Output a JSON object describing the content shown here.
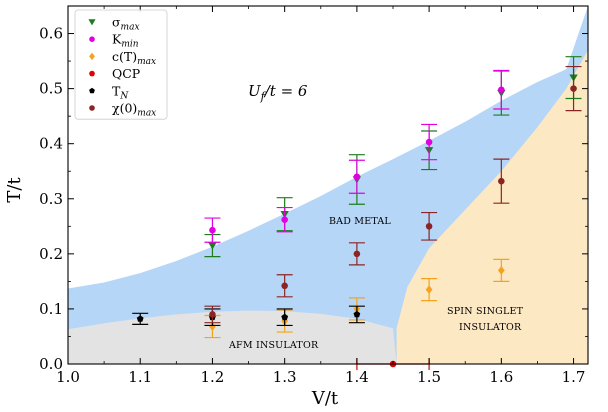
{
  "chart_data": {
    "type": "scatter",
    "xlabel": "V/t",
    "ylabel": "T/t",
    "xlim": [
      1.0,
      1.72
    ],
    "ylim": [
      0.0,
      0.65
    ],
    "x_ticks": [
      "1.0",
      "1.1",
      "1.2",
      "1.3",
      "1.4",
      "1.5",
      "1.6",
      "1.7"
    ],
    "y_ticks": [
      "0.0",
      "0.1",
      "0.2",
      "0.3",
      "0.4",
      "0.5",
      "0.6"
    ],
    "grid": false,
    "legend_position": "top-left",
    "annotation": {
      "base": "U",
      "sub": "f",
      "rest": "/t = 6"
    },
    "region_labels": {
      "bad_metal": "BAD METAL",
      "afm_insulator": "AFM INSULATOR",
      "spin_singlet_line1": "SPIN SINGLET",
      "spin_singlet_line2": "INSULATOR"
    },
    "region_colors": {
      "bad_metal": "#b5d6f7",
      "afm_insulator": "#e3e3e3",
      "spin_singlet_insulator": "#fde8c4"
    },
    "series": [
      {
        "key": "sigma",
        "name_base": "σ",
        "name_sub": "max",
        "marker": "triangle-down",
        "color": "#1c7d1c",
        "x": [
          1.2,
          1.3,
          1.4,
          1.5,
          1.6,
          1.7
        ],
        "y": [
          0.215,
          0.272,
          0.335,
          0.388,
          0.492,
          0.52
        ],
        "yerr": [
          0.02,
          0.03,
          0.045,
          0.035,
          0.04,
          0.038
        ]
      },
      {
        "key": "kmin",
        "name_base": "K",
        "name_sub": "min",
        "marker": "circle",
        "color": "#e100e1",
        "x": [
          1.2,
          1.3,
          1.4,
          1.5,
          1.6
        ],
        "y": [
          0.243,
          0.262,
          0.34,
          0.403,
          0.498
        ],
        "yerr": [
          0.022,
          0.022,
          0.03,
          0.032,
          0.035
        ]
      },
      {
        "key": "c",
        "name_base": "c(T)",
        "name_sub": "max",
        "marker": "diamond",
        "color": "#f5a31c",
        "x": [
          1.2,
          1.3,
          1.4,
          1.5,
          1.6
        ],
        "y": [
          0.068,
          0.078,
          0.1,
          0.135,
          0.17
        ],
        "yerr": [
          0.02,
          0.02,
          0.02,
          0.02,
          0.02
        ]
      },
      {
        "key": "qcp",
        "name_base": "QCP",
        "name_sub": "",
        "marker": "circle",
        "color": "#e00000",
        "x": [
          1.45
        ],
        "y": [
          0.0
        ],
        "xerr": [
          0.05
        ]
      },
      {
        "key": "tn",
        "name_base": "T",
        "name_sub": "N",
        "marker": "pentagon",
        "color": "#000000",
        "x": [
          1.1,
          1.2,
          1.3,
          1.4
        ],
        "y": [
          0.082,
          0.085,
          0.085,
          0.09
        ],
        "yerr": [
          0.01,
          0.015,
          0.015,
          0.015
        ]
      },
      {
        "key": "chi",
        "name_base": "χ(0)",
        "name_sub": "max",
        "marker": "circle",
        "color": "#8b2525",
        "x": [
          1.2,
          1.3,
          1.4,
          1.5,
          1.6,
          1.7
        ],
        "y": [
          0.09,
          0.142,
          0.2,
          0.25,
          0.332,
          0.5
        ],
        "yerr": [
          0.015,
          0.02,
          0.02,
          0.025,
          0.04,
          0.04
        ]
      }
    ]
  }
}
